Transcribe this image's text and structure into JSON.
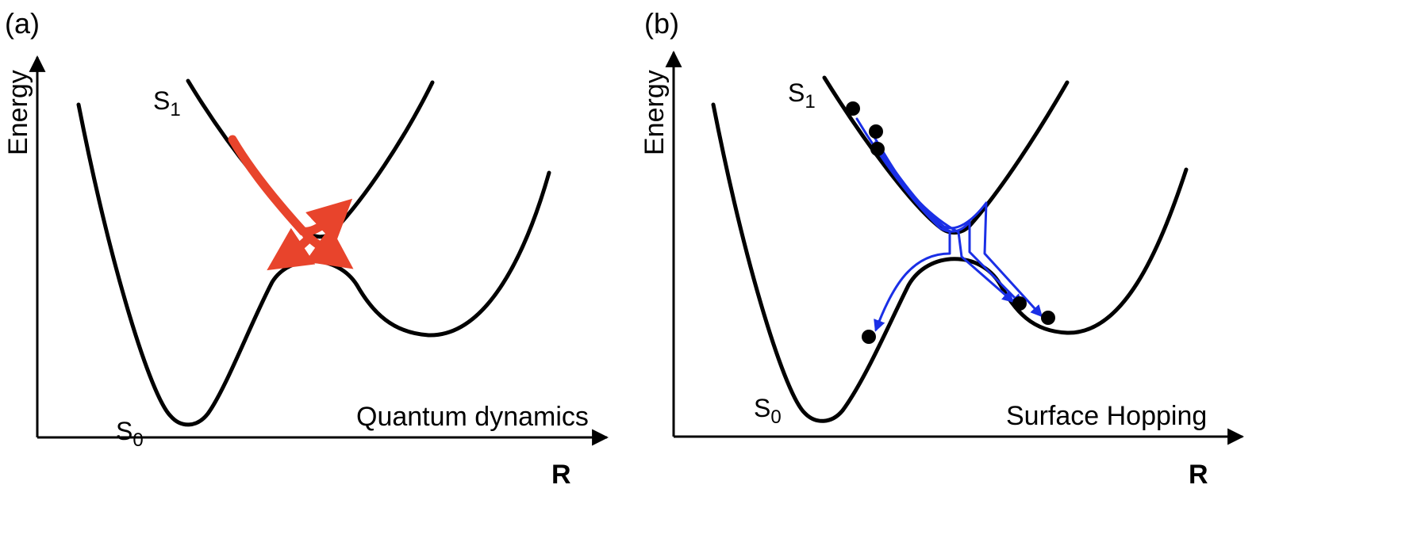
{
  "colors": {
    "curve": "#000000",
    "wavepacket": "#e8442c",
    "trajectory": "#1a2fe6",
    "particle": "#000000"
  },
  "panels": [
    {
      "id": "a",
      "panel_label": "(a)",
      "y_axis_label": "Energy",
      "x_axis_label": "R",
      "upper_state": {
        "label": "S",
        "subscript": "1"
      },
      "lower_state": {
        "label": "S",
        "subscript": "0"
      },
      "method": "Quantum dynamics",
      "annotation": "red wavepacket arrows branching at the crossing"
    },
    {
      "id": "b",
      "panel_label": "(b)",
      "y_axis_label": "Energy",
      "x_axis_label": "R",
      "upper_state": {
        "label": "S",
        "subscript": "1"
      },
      "lower_state": {
        "label": "S",
        "subscript": "0"
      },
      "method": "Surface Hopping",
      "annotation": "blue trajectories hopping between surfaces with black particles",
      "particle_count": 6
    }
  ]
}
